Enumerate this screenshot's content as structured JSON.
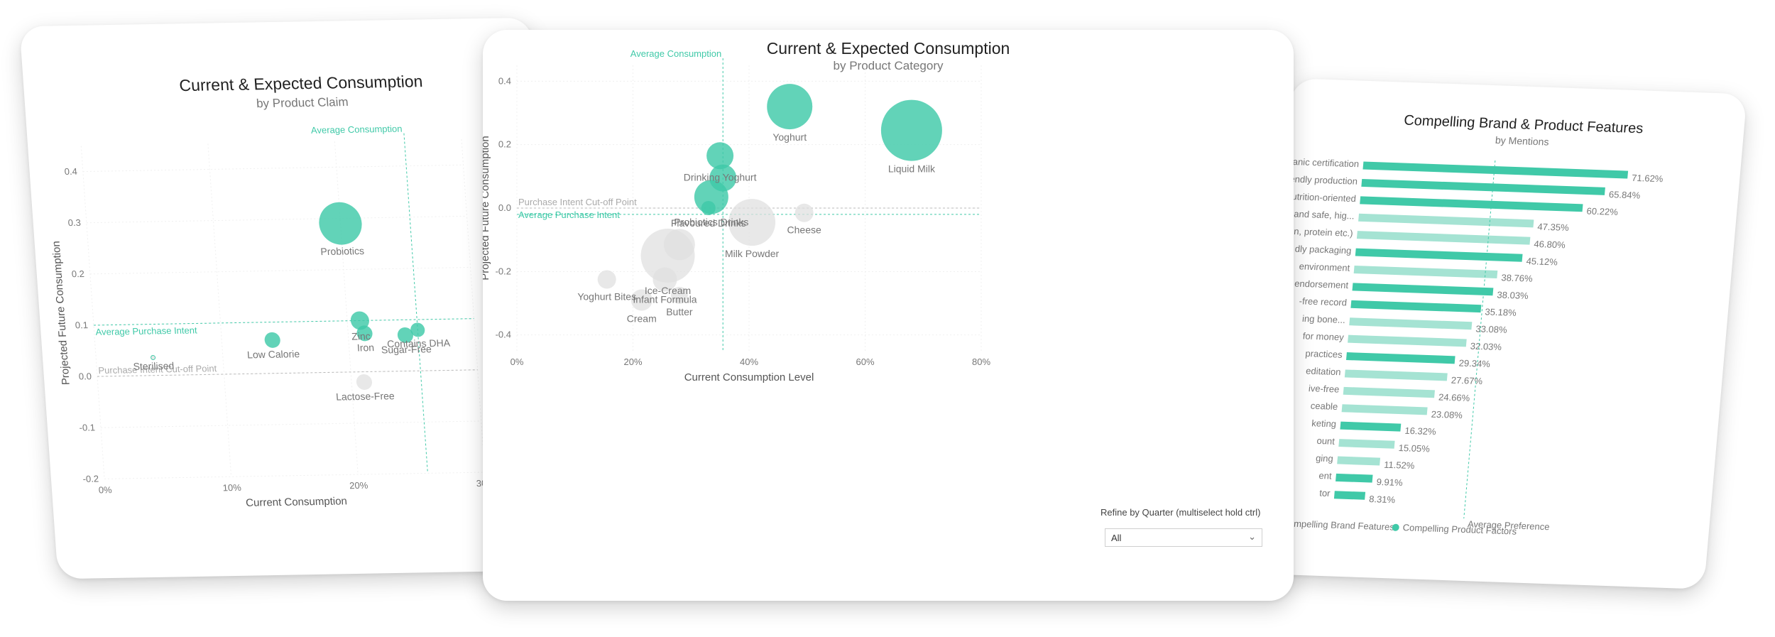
{
  "main": {
    "title": "Current & Expected Consumption",
    "subtitle": "by Product Category",
    "refine": {
      "label": "Refine by Quarter (multiselect hold ctrl)",
      "value": "All"
    }
  },
  "left": {
    "title": "Current & Expected Consumption",
    "subtitle": "by Product Claim"
  },
  "right": {
    "title": "Compelling Brand & Product Features",
    "subtitle": "by Mentions",
    "legend": [
      "Compelling Brand Features",
      "Compelling Product Factors"
    ],
    "avg_label": "Average Preference"
  },
  "colors": {
    "teal": "#40c9a8",
    "teal_light": "#a5e3d3",
    "grey": "#e0e0e0",
    "ref_grey": "#b8b8b8"
  },
  "chart_data": [
    {
      "type": "scatter",
      "title": "Current & Expected Consumption",
      "subtitle": "by Product Category",
      "xlabel": "Current Consumption Level",
      "ylabel": "Projected Future Consumption",
      "xlim": [
        0,
        80
      ],
      "ylim": [
        -0.45,
        0.45
      ],
      "x_ticks": [
        "0%",
        "20%",
        "40%",
        "60%",
        "80%"
      ],
      "x_tick_values": [
        0,
        20,
        40,
        60,
        80
      ],
      "y_ticks": [
        "0.4",
        "0.2",
        "0.0",
        "-0.2",
        "-0.4"
      ],
      "y_tick_values": [
        0.4,
        0.2,
        0.0,
        -0.2,
        -0.4
      ],
      "reference_lines": {
        "average_consumption": {
          "label": "Average Consumption",
          "x": 35.5
        },
        "purchase_intent_cutoff": {
          "label": "Purchase Intent Cut-off Point",
          "y": 0.0
        },
        "average_purchase_intent": {
          "label": "Average Purchase Intent",
          "y": -0.02
        }
      },
      "points": [
        {
          "label": "Yoghurt",
          "x": 47,
          "y": 0.32,
          "size": 32,
          "highlight": true
        },
        {
          "label": "Liquid Milk",
          "x": 68,
          "y": 0.245,
          "size": 43,
          "highlight": true
        },
        {
          "label": "Drinking Yoghurt",
          "x": 35,
          "y": 0.165,
          "size": 19,
          "highlight": true
        },
        {
          "label": "",
          "x": 35.5,
          "y": 0.095,
          "size": 19,
          "highlight": true
        },
        {
          "label": "Probiotics Drinks",
          "x": 33.5,
          "y": 0.035,
          "size": 24,
          "highlight": true
        },
        {
          "label": "Flavoured Drinks",
          "x": 33,
          "y": 0.0,
          "size": 10,
          "highlight": true
        },
        {
          "label": "Milk Powder",
          "x": 40.5,
          "y": -0.045,
          "size": 33,
          "highlight": false
        },
        {
          "label": "Cheese",
          "x": 49.5,
          "y": -0.015,
          "size": 13,
          "highlight": false
        },
        {
          "label": "Ice-Cream",
          "x": 26,
          "y": -0.15,
          "size": 38,
          "highlight": false
        },
        {
          "label": "",
          "x": 28,
          "y": -0.115,
          "size": 22,
          "highlight": false
        },
        {
          "label": "Yoghurt Bites",
          "x": 15.5,
          "y": -0.225,
          "size": 13,
          "highlight": false
        },
        {
          "label": "Infant Formula",
          "x": 25.5,
          "y": -0.225,
          "size": 17,
          "highlight": false
        },
        {
          "label": "Butter",
          "x": 28,
          "y": -0.275,
          "size": 12,
          "highlight": false
        },
        {
          "label": "Cream",
          "x": 21.5,
          "y": -0.29,
          "size": 15,
          "highlight": false
        }
      ]
    },
    {
      "type": "scatter",
      "title": "Current & Expected Consumption",
      "subtitle": "by Product Claim",
      "xlabel": "Current Consumption",
      "ylabel": "Projected Future Consumption",
      "xlim": [
        0,
        30
      ],
      "ylim": [
        -0.2,
        0.45
      ],
      "x_ticks": [
        "0%",
        "10%",
        "20%",
        "30%"
      ],
      "x_tick_values": [
        0,
        10,
        20,
        30
      ],
      "y_ticks": [
        "0.4",
        "0.3",
        "0.2",
        "0.1",
        "0.0",
        "-0.1",
        "-0.2"
      ],
      "y_tick_values": [
        0.4,
        0.3,
        0.2,
        0.1,
        0.0,
        -0.1,
        -0.2
      ],
      "reference_lines": {
        "average_consumption": {
          "label": "Average Consumption",
          "x": 25.5
        },
        "purchase_intent_cutoff": {
          "label": "Purchase Intent Cut-off Point",
          "y": 0.0
        },
        "average_purchase_intent": {
          "label": "Average Purchase Intent",
          "y": 0.1
        }
      },
      "points": [
        {
          "label": "Probiotics",
          "x": 20,
          "y": 0.29,
          "size": 30,
          "highlight": true
        },
        {
          "label": "Zinc",
          "x": 21,
          "y": 0.1,
          "size": 13,
          "highlight": true
        },
        {
          "label": "Iron",
          "x": 21.3,
          "y": 0.075,
          "size": 11,
          "highlight": true
        },
        {
          "label": "Contains DHA",
          "x": 25.5,
          "y": 0.08,
          "size": 10,
          "highlight": true
        },
        {
          "label": "Sugar-Free",
          "x": 24.5,
          "y": 0.07,
          "size": 11,
          "highlight": true
        },
        {
          "label": "Low Calorie",
          "x": 14,
          "y": 0.065,
          "size": 11,
          "highlight": true
        },
        {
          "label": "Sterilised",
          "x": 4.5,
          "y": 0.035,
          "size": 3,
          "highlight": false
        },
        {
          "label": "Lactose-Free",
          "x": 21,
          "y": -0.02,
          "size": 11,
          "highlight": false
        }
      ]
    },
    {
      "type": "bar",
      "orientation": "horizontal",
      "title": "Compelling Brand & Product Features",
      "subtitle": "by Mentions",
      "series_names": [
        "Compelling Brand Features",
        "Compelling Product Factors"
      ],
      "average_line": {
        "label": "Average Preference"
      },
      "categories": [
        "ganic certification",
        "endly production",
        "utrition-oriented",
        "s and safe, hig...",
        "n, protein etc.)",
        "dly packaging",
        "environment",
        "endorsement",
        "-free record",
        "ing bone...",
        "for money",
        "practices",
        "editation",
        "ive-free",
        "ceable",
        "keting",
        "ount",
        "ging",
        "ent",
        "tor"
      ],
      "bars": [
        {
          "category": 0,
          "series": 1,
          "value": 71.62,
          "label": "71.62%"
        },
        {
          "category": 1,
          "series": 1,
          "value": 65.84,
          "label": "65.84%"
        },
        {
          "category": 2,
          "series": 1,
          "value": 60.22,
          "label": "60.22%"
        },
        {
          "category": 3,
          "series": 0,
          "value": 47.35,
          "label": "47.35%"
        },
        {
          "category": 4,
          "series": 0,
          "value": 46.8,
          "label": "46.80%"
        },
        {
          "category": 5,
          "series": 1,
          "value": 45.12,
          "label": "45.12%"
        },
        {
          "category": 6,
          "series": 0,
          "value": 38.76,
          "label": "38.76%"
        },
        {
          "category": 7,
          "series": 1,
          "value": 38.03,
          "label": "38.03%"
        },
        {
          "category": 8,
          "series": 1,
          "value": 35.18,
          "label": "35.18%"
        },
        {
          "category": 9,
          "series": 0,
          "value": 33.08,
          "label": "33.08%"
        },
        {
          "category": 10,
          "series": 0,
          "value": 32.03,
          "label": "32.03%"
        },
        {
          "category": 11,
          "series": 1,
          "value": 29.34,
          "label": "29.34%"
        },
        {
          "category": 12,
          "series": 0,
          "value": 27.67,
          "label": "27.67%"
        },
        {
          "category": 13,
          "series": 0,
          "value": 24.66,
          "label": "24.66%"
        },
        {
          "category": 14,
          "series": 0,
          "value": 23.08,
          "label": "23.08%"
        },
        {
          "category": 15,
          "series": 1,
          "value": 16.32,
          "label": "16.32%"
        },
        {
          "category": 16,
          "series": 0,
          "value": 15.05,
          "label": "15.05%"
        },
        {
          "category": 17,
          "series": 0,
          "value": 11.52,
          "label": "11.52%"
        },
        {
          "category": 18,
          "series": 1,
          "value": 9.91,
          "label": "9.91%"
        },
        {
          "category": 19,
          "series": 1,
          "value": 8.31,
          "label": "8.31%"
        }
      ]
    }
  ]
}
